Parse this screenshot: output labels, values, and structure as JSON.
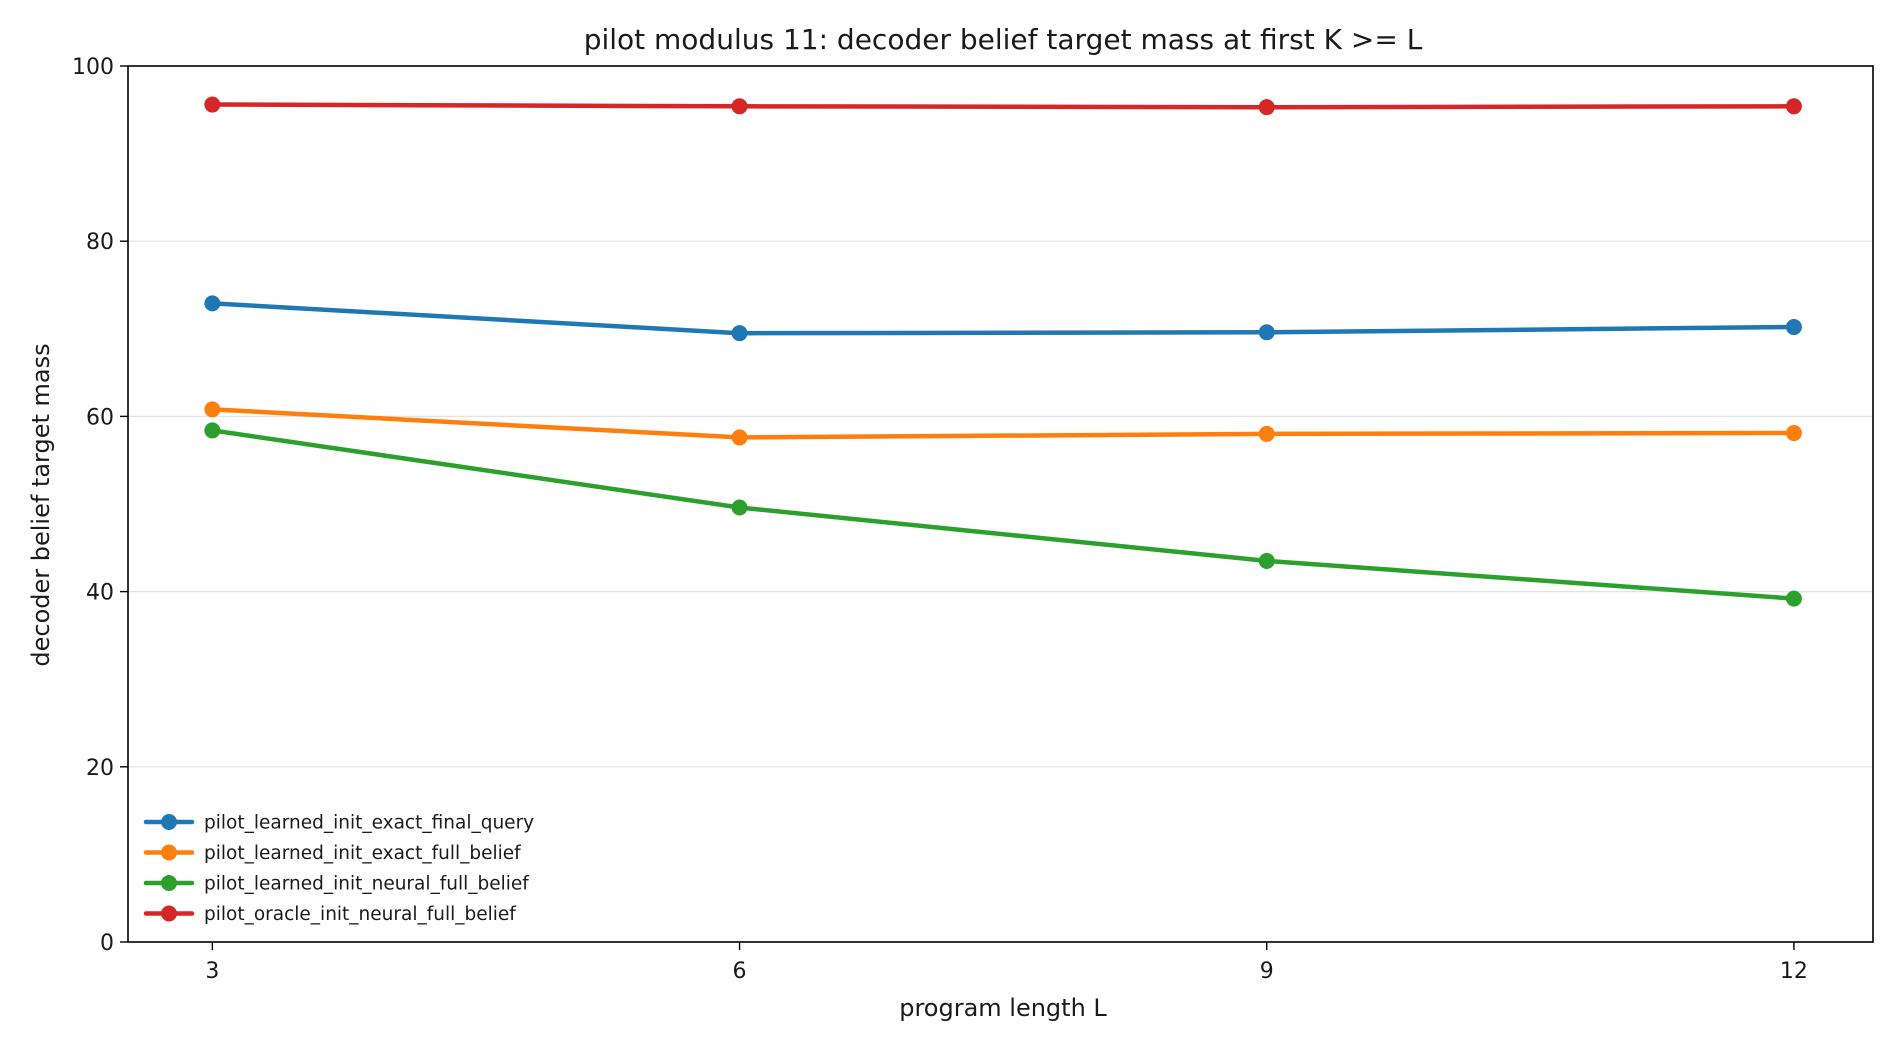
{
  "chart_data": {
    "type": "line",
    "title": "pilot modulus 11: decoder belief target mass at first K >= L",
    "xlabel": "program length L",
    "ylabel": "decoder belief target mass",
    "x": [
      3,
      6,
      9,
      12
    ],
    "x_ticks": [
      "3",
      "6",
      "9",
      "12"
    ],
    "y_ticks": [
      "0",
      "20",
      "40",
      "60",
      "80",
      "100"
    ],
    "xlim": [
      2.52,
      12.45
    ],
    "ylim": [
      0,
      100
    ],
    "grid": "horizontal",
    "legend_position": "lower-left",
    "series": [
      {
        "name": "pilot_learned_init_exact_final_query",
        "color": "#1f77b4",
        "values": [
          72.9,
          69.5,
          69.6,
          70.2
        ]
      },
      {
        "name": "pilot_learned_init_exact_full_belief",
        "color": "#ff7f0e",
        "values": [
          60.8,
          57.6,
          58.0,
          58.1
        ]
      },
      {
        "name": "pilot_learned_init_neural_full_belief",
        "color": "#2ca02c",
        "values": [
          58.4,
          49.6,
          43.5,
          39.2
        ]
      },
      {
        "name": "pilot_oracle_init_neural_full_belief",
        "color": "#d62728",
        "values": [
          95.6,
          95.4,
          95.3,
          95.4
        ]
      }
    ]
  }
}
